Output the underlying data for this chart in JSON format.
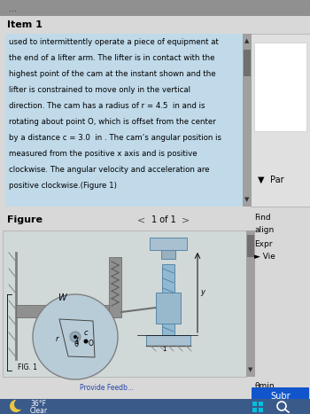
{
  "bg_color": "#b8b8b8",
  "page_bg": "#d8d8d8",
  "title": "Item 1",
  "body_text_lines": [
    "used to intermittently operate a piece of equipment at",
    "the end of a lifter arm. The lifter is in contact with the",
    "highest point of the cam at the instant shown and the",
    "lifter is constrained to move only in the vertical",
    "direction. The cam has a radius of r = 4.5  in and is",
    "rotating about point O, which is offset from the center",
    "by a distance c = 3.0  in . The cam’s angular position is",
    "measured from the positive x axis and is positive",
    "clockwise. The angular velocity and acceleration are",
    "positive clockwise.(Figure 1)"
  ],
  "panel_blue": "#c0daea",
  "scrollbar_bg": "#a0a0a0",
  "scrollbar_thumb": "#707070",
  "right_panel_bg": "#e0e0e0",
  "right_panel_edge": "#aaaaaa",
  "figure_label": "Figure",
  "nav_text": "1 of 1",
  "right_menu": [
    "Find",
    "align",
    "Expr",
    "► Vie"
  ],
  "par_label": "Par",
  "theta_min_label": "θmin",
  "submit_label": "Subr",
  "submit_color": "#1155cc",
  "provide_feedback": "Provide Feedb...",
  "taskbar_color": "#3a5a8a",
  "weather_temp": "36°F",
  "weather_desc": "Clear",
  "fig_area_bg": "#d0d8d8",
  "cam_fill": "#b8ccd8",
  "cam_edge": "#808080",
  "lifter_fill": "#90b8d0",
  "lifter_edge": "#5888a8",
  "arm_fill": "#909090",
  "wall_fill": "#808080",
  "fig1_label": "FIG. 1"
}
